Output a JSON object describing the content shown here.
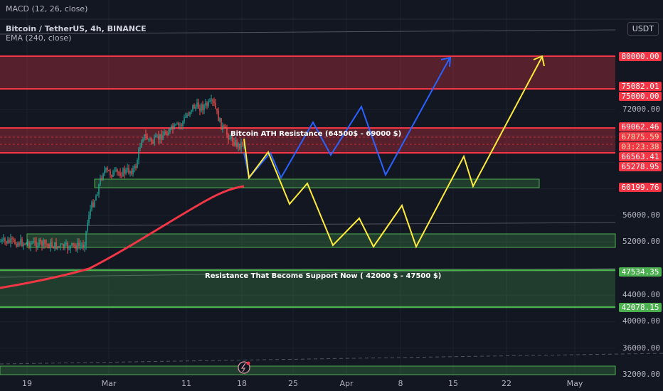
{
  "indicators": {
    "macd": "MACD (12, 26, close)",
    "symbol": "Bitcoin / TetherUS, 4h, BINANCE",
    "ema": "EMA (240, close)"
  },
  "currency_button": "USDT",
  "price_labels": [
    {
      "text": "80000.00",
      "price": 80000,
      "style": "red"
    },
    {
      "text": "75082.01",
      "price": 75400,
      "style": "red"
    },
    {
      "text": "75000.00",
      "price": 74950,
      "style": "red"
    },
    {
      "text": "69062.46",
      "price": 69300,
      "style": "red"
    },
    {
      "text": "67875.59",
      "price": 67900,
      "style": "yellow"
    },
    {
      "text": "03:23:38",
      "price": 66600,
      "style": "yellow"
    },
    {
      "text": "66563.41",
      "price": 65300,
      "style": "red"
    },
    {
      "text": "65278.95",
      "price": 64000,
      "style": "red"
    },
    {
      "text": "60199.76",
      "price": 60199.76,
      "style": "red"
    },
    {
      "text": "47534.35",
      "price": 47534.35,
      "style": "green"
    },
    {
      "text": "42078.15",
      "price": 42078.15,
      "style": "green"
    }
  ],
  "y_ticks": [
    "72000.00",
    "56000.00",
    "52000.00",
    "44000.00",
    "40000.00",
    "36000.00",
    "32000.00"
  ],
  "y_tick_values": [
    72000,
    56000,
    52000,
    44000,
    40000,
    36000,
    32000
  ],
  "x_ticks": [
    "19",
    "Mar",
    "11",
    "18",
    "25",
    "Apr",
    "8",
    "15",
    "22",
    "May"
  ],
  "annotations": {
    "ath": "Bitcoin ATH Resistance (64500$  -  69000 $)",
    "support": "Resistance That Become Support Now ( 42000 $ - 47500 $)"
  },
  "colors": {
    "bg": "#131722",
    "red": "#f23645",
    "green": "#4caf50",
    "blue": "#2962ff",
    "yellow": "#ffeb3b",
    "up": "#26a69a",
    "down": "#ef5350"
  }
}
